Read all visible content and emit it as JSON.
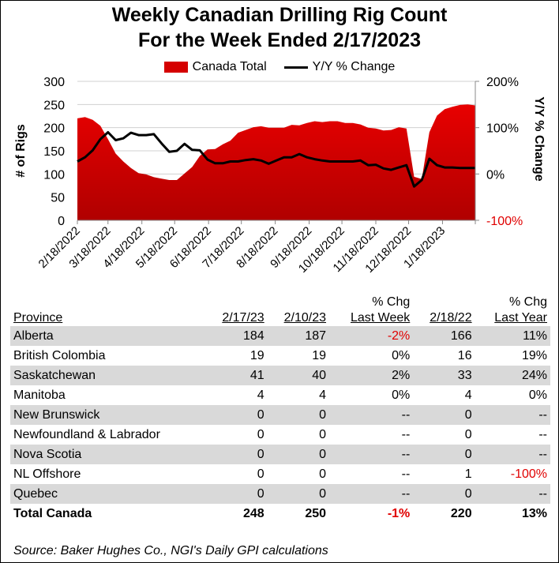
{
  "title_line1": "Weekly Canadian Drilling Rig Count",
  "title_line2": "For the Week Ended 2/17/2023",
  "legend": {
    "area": "Canada Total",
    "line": "Y/Y % Change"
  },
  "colors": {
    "area_top": "#e80000",
    "area_bottom": "#b00000",
    "line": "#000000",
    "negative": "#e00000",
    "shade": "#d9d9d9"
  },
  "chart_data": {
    "type": "area+line",
    "title": "Weekly Canadian Drilling Rig Count For the Week Ended 2/17/2023",
    "ylabel": "# of Rigs",
    "y2label": "Y/Y % Change",
    "ylim": [
      0,
      300
    ],
    "y2lim": [
      -100,
      200
    ],
    "yticks": [
      "0",
      "50",
      "100",
      "150",
      "200",
      "250",
      "300"
    ],
    "y2ticks": [
      "-100%",
      "0%",
      "100%",
      "200%"
    ],
    "xtick_labels": [
      "2/18/2022",
      "3/18/2022",
      "4/18/2022",
      "5/18/2022",
      "6/18/2022",
      "7/18/2022",
      "8/18/2022",
      "9/18/2022",
      "10/18/2022",
      "11/18/2022",
      "12/18/2022",
      "1/18/2023"
    ],
    "xtick_dates": [
      "2022-02-18",
      "2022-03-18",
      "2022-04-18",
      "2022-05-18",
      "2022-06-18",
      "2022-07-18",
      "2022-08-18",
      "2022-09-18",
      "2022-10-18",
      "2022-11-18",
      "2022-12-18",
      "2023-01-18",
      "2023-02-18"
    ],
    "grid": "horizontal",
    "legend_position": "top",
    "x": [
      "2022-02-18",
      "2022-02-25",
      "2022-03-04",
      "2022-03-11",
      "2022-03-18",
      "2022-03-25",
      "2022-04-01",
      "2022-04-08",
      "2022-04-15",
      "2022-04-22",
      "2022-04-29",
      "2022-05-06",
      "2022-05-13",
      "2022-05-20",
      "2022-05-27",
      "2022-06-03",
      "2022-06-10",
      "2022-06-17",
      "2022-06-24",
      "2022-07-01",
      "2022-07-08",
      "2022-07-15",
      "2022-07-22",
      "2022-07-29",
      "2022-08-05",
      "2022-08-12",
      "2022-08-19",
      "2022-08-26",
      "2022-09-02",
      "2022-09-09",
      "2022-09-16",
      "2022-09-23",
      "2022-09-30",
      "2022-10-07",
      "2022-10-14",
      "2022-10-21",
      "2022-10-28",
      "2022-11-04",
      "2022-11-11",
      "2022-11-18",
      "2022-11-25",
      "2022-12-02",
      "2022-12-09",
      "2022-12-16",
      "2022-12-23",
      "2022-12-30",
      "2023-01-06",
      "2023-01-13",
      "2023-01-20",
      "2023-01-27",
      "2023-02-03",
      "2023-02-10",
      "2023-02-17"
    ],
    "series": [
      {
        "name": "Canada Total",
        "type": "area",
        "axis": "left",
        "values": [
          220,
          223,
          217,
          204,
          175,
          144,
          127,
          113,
          102,
          99,
          93,
          90,
          87,
          87,
          101,
          115,
          139,
          153,
          154,
          164,
          172,
          189,
          195,
          201,
          203,
          200,
          200,
          200,
          206,
          205,
          210,
          214,
          212,
          214,
          214,
          210,
          210,
          207,
          200,
          198,
          194,
          195,
          201,
          198,
          94,
          89,
          190,
          226,
          240,
          245,
          249,
          250,
          248
        ]
      },
      {
        "name": "Y/Y % Change",
        "type": "line",
        "axis": "right",
        "values": [
          27,
          36,
          51,
          75,
          90,
          73,
          77,
          89,
          84,
          84,
          86,
          66,
          48,
          50,
          65,
          52,
          51,
          31,
          23,
          23,
          27,
          27,
          30,
          32,
          29,
          22,
          29,
          36,
          36,
          43,
          36,
          32,
          29,
          27,
          27,
          27,
          27,
          29,
          19,
          20,
          12,
          9,
          14,
          19,
          -27,
          -13,
          33,
          19,
          14,
          14,
          13,
          13,
          13
        ]
      }
    ]
  },
  "table": {
    "headers": {
      "province": "Province",
      "c1": "2/17/23",
      "c2": "2/10/23",
      "c3_top": "% Chg",
      "c3": "Last Week",
      "c4": "2/18/22",
      "c5_top": "% Chg",
      "c5": "Last Year"
    },
    "rows": [
      {
        "province": "Alberta",
        "c1": "184",
        "c2": "187",
        "c3": "-2%",
        "c4": "166",
        "c5": "11%"
      },
      {
        "province": "British Colombia",
        "c1": "19",
        "c2": "19",
        "c3": "0%",
        "c4": "16",
        "c5": "19%"
      },
      {
        "province": "Saskatchewan",
        "c1": "41",
        "c2": "40",
        "c3": "2%",
        "c4": "33",
        "c5": "24%"
      },
      {
        "province": "Manitoba",
        "c1": "4",
        "c2": "4",
        "c3": "0%",
        "c4": "4",
        "c5": "0%"
      },
      {
        "province": "New Brunswick",
        "c1": "0",
        "c2": "0",
        "c3": "--",
        "c4": "0",
        "c5": "--"
      },
      {
        "province": "Newfoundland & Labrador",
        "c1": "0",
        "c2": "0",
        "c3": "--",
        "c4": "0",
        "c5": "--"
      },
      {
        "province": "Nova Scotia",
        "c1": "0",
        "c2": "0",
        "c3": "--",
        "c4": "0",
        "c5": "--"
      },
      {
        "province": "NL Offshore",
        "c1": "0",
        "c2": "0",
        "c3": "--",
        "c4": "1",
        "c5": "-100%"
      },
      {
        "province": "Quebec",
        "c1": "0",
        "c2": "0",
        "c3": "--",
        "c4": "0",
        "c5": "--"
      }
    ],
    "total": {
      "province": "Total Canada",
      "c1": "248",
      "c2": "250",
      "c3": "-1%",
      "c4": "220",
      "c5": "13%"
    }
  },
  "source": "Source: Baker Hughes Co., NGI's Daily GPI calculations"
}
